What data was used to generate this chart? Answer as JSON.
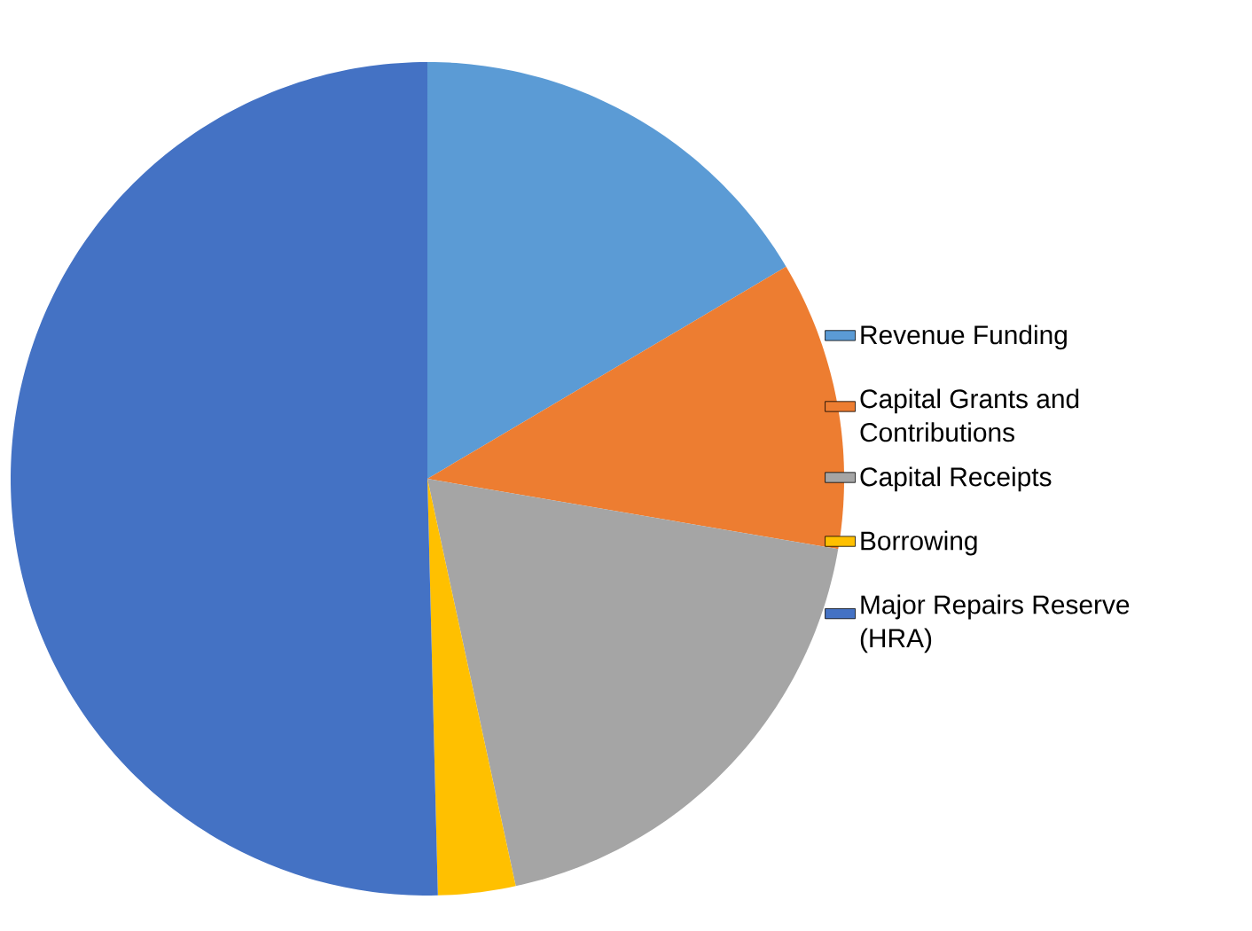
{
  "chart_data": {
    "type": "pie",
    "categories": [
      "Revenue Funding",
      "Capital Grants and Contributions",
      "Capital Receipts",
      "Borrowing",
      "Major Repairs Reserve (HRA)"
    ],
    "values": [
      16.5,
      11.2,
      18.9,
      3.0,
      50.4
    ],
    "colors": [
      "#5b9bd5",
      "#ed7d31",
      "#a5a5a5",
      "#ffc000",
      "#4472c4"
    ],
    "legend": "right"
  }
}
